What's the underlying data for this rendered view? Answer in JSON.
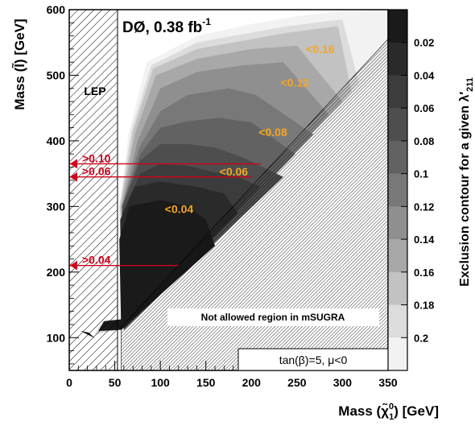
{
  "chart_data": {
    "type": "heatmap",
    "title": "DØ, 0.38 fb",
    "title_sup": "-1",
    "xlabel_main": "Mass (",
    "xlabel_chi": "χ̃",
    "xlabel_sub": "1",
    "xlabel_sup": "0",
    "xlabel_tail": ") [GeV]",
    "ylabel": "Mass (l̃) [GeV]",
    "colorbar_label": "Exclusion contour for a given λ′",
    "colorbar_label_sub": "211",
    "xlim": [
      0,
      350
    ],
    "ylim": [
      50,
      600
    ],
    "x_ticks": [
      0,
      50,
      100,
      150,
      200,
      250,
      300,
      350
    ],
    "y_ticks": [
      100,
      200,
      300,
      400,
      500,
      600
    ],
    "colorbar_ticks": [
      "0.02",
      "0.04",
      "0.06",
      "0.08",
      "0.1",
      "0.12",
      "0.14",
      "0.16",
      "0.18",
      "0.2"
    ],
    "colorbar_colors": [
      "#1a1a1a",
      "#2a2a2a",
      "#3c3c3c",
      "#4e4e4e",
      "#626262",
      "#787878",
      "#8f8f8f",
      "#a8a8a8",
      "#c2c2c2",
      "#dcdcdc",
      "#f2f2f2"
    ],
    "lep_label": "LEP",
    "lep_x_max": 53,
    "forbidden_label": "Not allowed region in mSUGRA",
    "params_label": "tan(β)=5, μ<0",
    "contour_labels": [
      {
        "text": "<0.04",
        "x": 105,
        "y": 290
      },
      {
        "text": "<0.06",
        "x": 165,
        "y": 347
      },
      {
        "text": "<0.08",
        "x": 208,
        "y": 407
      },
      {
        "text": "<0.12",
        "x": 232,
        "y": 483
      },
      {
        "text": "<0.16",
        "x": 260,
        "y": 534
      }
    ],
    "limit_lines": [
      {
        "text": ">0.10",
        "y": 365
      },
      {
        "text": ">0.06",
        "y": 345
      },
      {
        "text": ">0.04",
        "y": 210
      }
    ],
    "colors": {
      "axis": "#000000",
      "contour_label": "#f5a623",
      "limit": "#d0021b"
    }
  }
}
